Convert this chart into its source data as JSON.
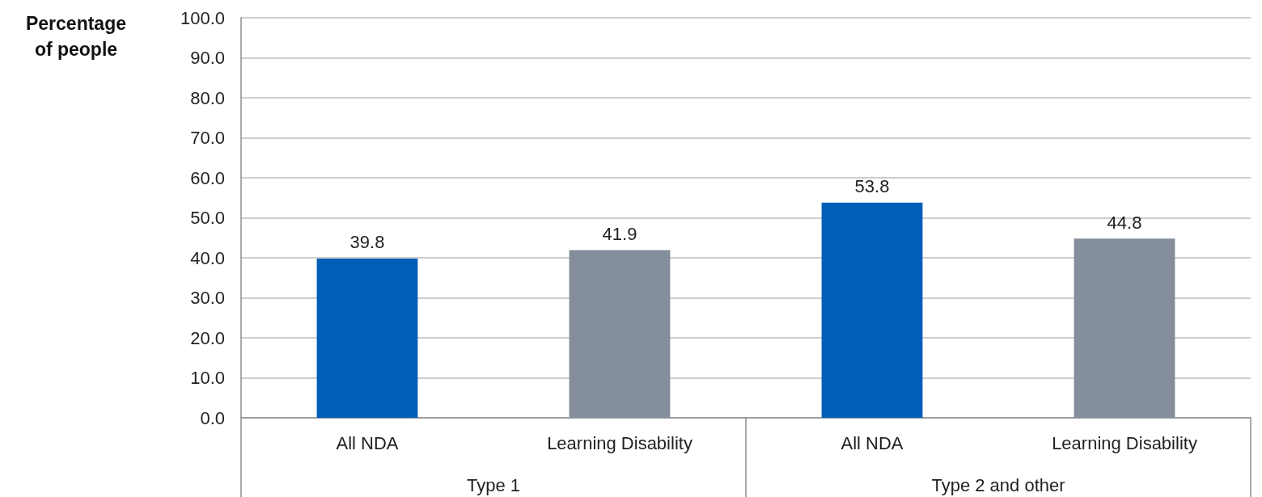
{
  "chart_data": {
    "type": "bar",
    "ylabel": "Percentage of people",
    "categories": [
      "Type 1",
      "Type 2 and other"
    ],
    "series": [
      {
        "name": "All NDA",
        "color": "#005eb8",
        "values": [
          39.8,
          53.8
        ]
      },
      {
        "name": "Learning Disability",
        "color": "#858f9b",
        "values": [
          41.9,
          44.8
        ]
      }
    ],
    "ylim": [
      0,
      100
    ],
    "yticks": [
      {
        "value": 0,
        "label": "0.0"
      },
      {
        "value": 10,
        "label": "10.0"
      },
      {
        "value": 20,
        "label": "20.0"
      },
      {
        "value": 30,
        "label": "30.0"
      },
      {
        "value": 40,
        "label": "40.0"
      },
      {
        "value": 50,
        "label": "50.0"
      },
      {
        "value": 60,
        "label": "60.0"
      },
      {
        "value": 70,
        "label": "70.0"
      },
      {
        "value": 80,
        "label": "80.0"
      },
      {
        "value": 90,
        "label": "90.0"
      },
      {
        "value": 100,
        "label": "100.0"
      }
    ],
    "grid": "y",
    "data_labels": true,
    "legend": false
  }
}
